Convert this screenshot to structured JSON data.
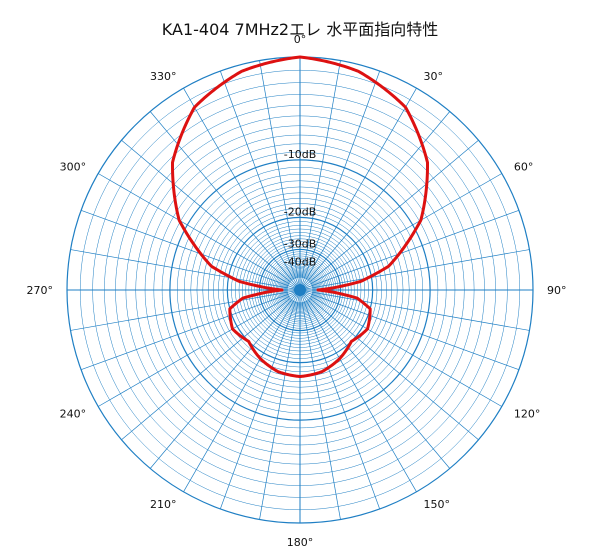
{
  "chart_data": {
    "type": "polar",
    "title": "KA1-404 7MHz2エレ 水平面指向特性",
    "angle_labels": [
      {
        "deg": 0,
        "text": "0°"
      },
      {
        "deg": 30,
        "text": "30°"
      },
      {
        "deg": 60,
        "text": "60°"
      },
      {
        "deg": 90,
        "text": "90°"
      },
      {
        "deg": 120,
        "text": "120°"
      },
      {
        "deg": 150,
        "text": "150°"
      },
      {
        "deg": 180,
        "text": "180°"
      },
      {
        "deg": 210,
        "text": "210°"
      },
      {
        "deg": 240,
        "text": "240°"
      },
      {
        "deg": 270,
        "text": "270°"
      },
      {
        "deg": 300,
        "text": "300°"
      },
      {
        "deg": 330,
        "text": "330°"
      }
    ],
    "db_labels": [
      {
        "db": -10,
        "text": "-10dB"
      },
      {
        "db": -20,
        "text": "-20dB"
      },
      {
        "db": -30,
        "text": "-30dB"
      },
      {
        "db": -40,
        "text": "-40dB"
      }
    ],
    "grid": true,
    "series": [
      {
        "color": "#dd1111",
        "points": [
          {
            "deg": 0,
            "db": 0
          },
          {
            "deg": 15,
            "db": -0.5
          },
          {
            "deg": 30,
            "db": -1.7
          },
          {
            "deg": 45,
            "db": -4.4
          },
          {
            "deg": 60,
            "db": -8.8
          },
          {
            "deg": 75,
            "db": -16
          },
          {
            "deg": 82,
            "db": -23
          },
          {
            "deg": 87,
            "db": -35
          },
          {
            "deg": 90,
            "db": -44
          },
          {
            "deg": 93,
            "db": -35
          },
          {
            "deg": 98,
            "db": -24
          },
          {
            "deg": 105,
            "db": -20
          },
          {
            "deg": 120,
            "db": -18.8
          },
          {
            "deg": 135,
            "db": -20
          },
          {
            "deg": 150,
            "db": -18.5
          },
          {
            "deg": 165,
            "db": -17.4
          },
          {
            "deg": 180,
            "db": -17
          },
          {
            "deg": 195,
            "db": -17.4
          },
          {
            "deg": 210,
            "db": -18.5
          },
          {
            "deg": 225,
            "db": -20
          },
          {
            "deg": 240,
            "db": -18.8
          },
          {
            "deg": 255,
            "db": -20
          },
          {
            "deg": 262,
            "db": -24
          },
          {
            "deg": 267,
            "db": -35
          },
          {
            "deg": 270,
            "db": -44
          },
          {
            "deg": 273,
            "db": -35
          },
          {
            "deg": 278,
            "db": -23
          },
          {
            "deg": 285,
            "db": -16
          },
          {
            "deg": 300,
            "db": -8.8
          },
          {
            "deg": 315,
            "db": -4.4
          },
          {
            "deg": 330,
            "db": -1.7
          },
          {
            "deg": 345,
            "db": -0.5
          }
        ]
      }
    ],
    "colors": {
      "grid": "#1f7fc4",
      "pattern": "#dd1111"
    }
  }
}
